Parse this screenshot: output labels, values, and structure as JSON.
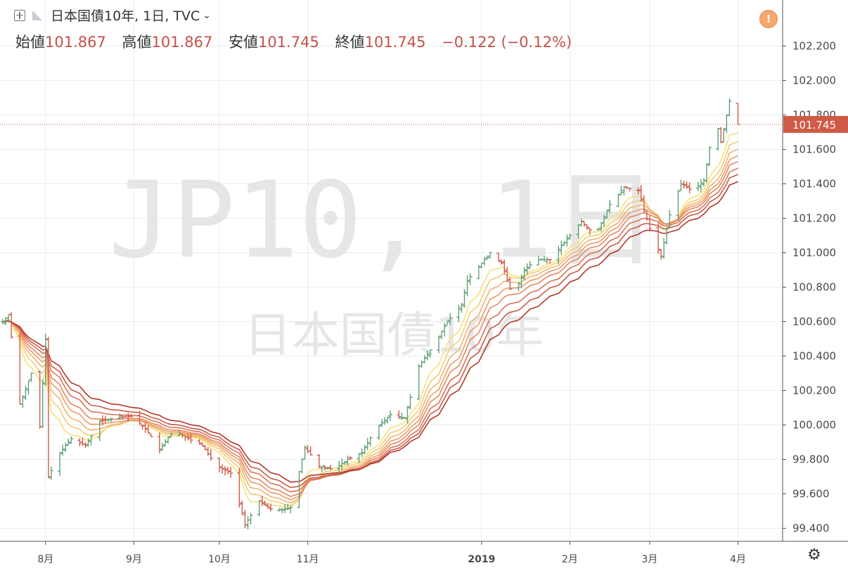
{
  "header": {
    "title": "日本国債10年, 1日, TVC",
    "open_label": "始値",
    "open_value": "101.867",
    "high_label": "高値",
    "high_value": "101.867",
    "low_label": "安値",
    "low_value": "101.745",
    "close_label": "終値",
    "close_value": "101.745",
    "change": "−0.122 (−0.12%)"
  },
  "watermark": {
    "line1": "JP10, 1日",
    "line2": "日本国債10年"
  },
  "price_tag": "101.745",
  "icons": {
    "add": "plus-square-icon",
    "flag": "flag-icon",
    "warning": "warning-icon",
    "settings": "gear-icon"
  },
  "colors": {
    "up": "#5fa175",
    "down": "#d05a4a",
    "ribbon_fast": "#f5e27a",
    "ribbon_slow": "#b5382a",
    "price_tag_bg": "#cf5a46"
  },
  "chart_data": {
    "type": "bar",
    "style": "ohlc-with-moving-average-ribbon",
    "yaxis": {
      "ticks": [
        99.4,
        99.6,
        99.8,
        100.0,
        100.2,
        100.4,
        100.6,
        100.8,
        101.0,
        101.2,
        101.4,
        101.6,
        101.8,
        102.0,
        102.2
      ],
      "tick_labels": [
        "99.400",
        "99.600",
        "99.800",
        "100.000",
        "100.200",
        "100.400",
        "100.600",
        "100.800",
        "101.000",
        "101.200",
        "101.400",
        "101.600",
        "101.800",
        "102.000",
        "102.200"
      ],
      "range": [
        99.3,
        102.28
      ]
    },
    "xaxis": {
      "tick_labels": [
        "8月",
        "9月",
        "10月",
        "11月",
        "2019",
        "2月",
        "3月",
        "4月"
      ],
      "tick_dates": [
        "2018-08-01",
        "2018-09-01",
        "2018-10-01",
        "2018-11-01",
        "2019-01-01",
        "2019-02-01",
        "2019-03-01",
        "2019-04-01"
      ],
      "range": [
        "2018-07-17",
        "2019-04-09"
      ]
    },
    "grid": true,
    "last_value": 101.745,
    "ohlc_close_path": [
      [
        "2018-07-17",
        100.6
      ],
      [
        "2018-07-19",
        100.64
      ],
      [
        "2018-07-23",
        100.12
      ],
      [
        "2018-07-27",
        100.3
      ],
      [
        "2018-07-30",
        99.99
      ],
      [
        "2018-08-01",
        100.5
      ],
      [
        "2018-08-02",
        99.7
      ],
      [
        "2018-08-06",
        99.84
      ],
      [
        "2018-08-10",
        99.92
      ],
      [
        "2018-08-15",
        99.88
      ],
      [
        "2018-08-20",
        100.02
      ],
      [
        "2018-08-25",
        100.04
      ],
      [
        "2018-08-31",
        100.05
      ],
      [
        "2018-09-05",
        99.98
      ],
      [
        "2018-09-10",
        99.86
      ],
      [
        "2018-09-15",
        99.97
      ],
      [
        "2018-09-20",
        99.92
      ],
      [
        "2018-09-25",
        99.88
      ],
      [
        "2018-09-30",
        99.76
      ],
      [
        "2018-10-05",
        99.72
      ],
      [
        "2018-10-10",
        99.42
      ],
      [
        "2018-10-15",
        99.56
      ],
      [
        "2018-10-20",
        99.5
      ],
      [
        "2018-10-26",
        99.52
      ],
      [
        "2018-10-31",
        99.87
      ],
      [
        "2018-11-05",
        99.76
      ],
      [
        "2018-11-10",
        99.74
      ],
      [
        "2018-11-15",
        99.8
      ],
      [
        "2018-11-20",
        99.84
      ],
      [
        "2018-11-25",
        99.98
      ],
      [
        "2018-11-30",
        100.06
      ],
      [
        "2018-12-05",
        100.04
      ],
      [
        "2018-12-10",
        100.34
      ],
      [
        "2018-12-15",
        100.46
      ],
      [
        "2018-12-20",
        100.6
      ],
      [
        "2018-12-25",
        100.7
      ],
      [
        "2018-12-27",
        100.84
      ],
      [
        "2019-01-04",
        101.0
      ],
      [
        "2019-01-08",
        100.94
      ],
      [
        "2019-01-12",
        100.74
      ],
      [
        "2019-01-16",
        100.9
      ],
      [
        "2019-01-20",
        100.96
      ],
      [
        "2019-01-25",
        100.96
      ],
      [
        "2019-01-30",
        101.06
      ],
      [
        "2019-02-05",
        101.18
      ],
      [
        "2019-02-10",
        101.1
      ],
      [
        "2019-02-15",
        101.28
      ],
      [
        "2019-02-20",
        101.38
      ],
      [
        "2019-02-25",
        101.36
      ],
      [
        "2019-03-01",
        101.14
      ],
      [
        "2019-03-05",
        100.98
      ],
      [
        "2019-03-08",
        101.22
      ],
      [
        "2019-03-12",
        101.4
      ],
      [
        "2019-03-16",
        101.36
      ],
      [
        "2019-03-20",
        101.42
      ],
      [
        "2019-03-24",
        101.8
      ],
      [
        "2019-03-26",
        101.64
      ],
      [
        "2019-03-29",
        101.88
      ],
      [
        "2019-04-01",
        101.745
      ]
    ],
    "ribbon_last_values": [
      101.52,
      101.47,
      101.42,
      101.38,
      101.34,
      101.3,
      101.26,
      101.22
    ]
  }
}
